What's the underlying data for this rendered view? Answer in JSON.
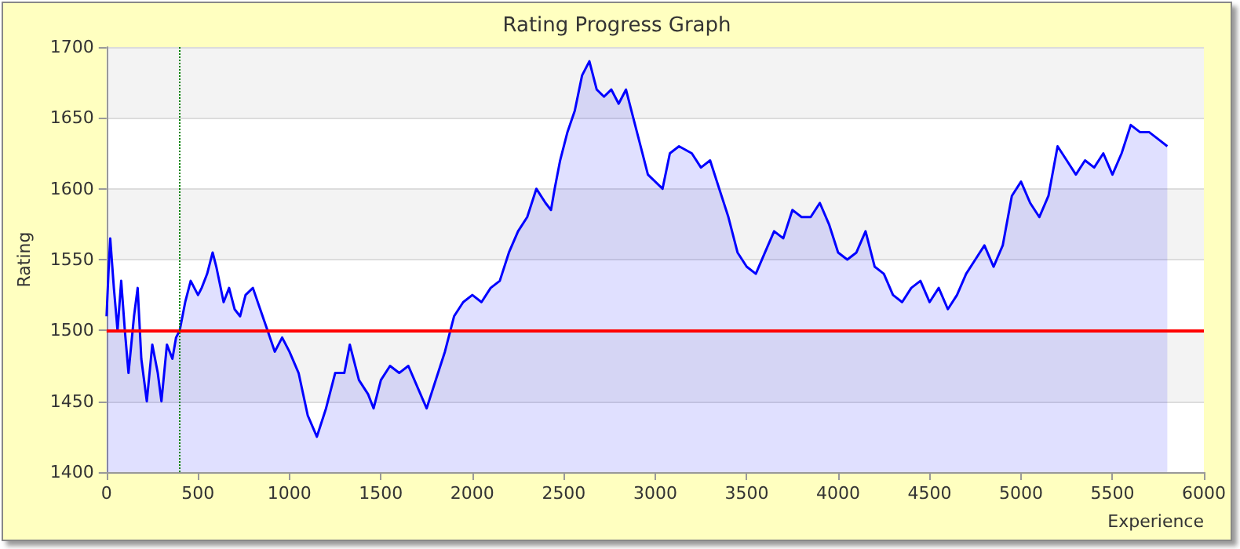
{
  "chart_data": {
    "type": "area",
    "title": "Rating Progress Graph",
    "xlabel": "Experience",
    "ylabel": "Rating",
    "x": [
      0,
      10,
      20,
      40,
      60,
      80,
      100,
      120,
      150,
      170,
      190,
      220,
      250,
      280,
      300,
      330,
      360,
      380,
      400,
      430,
      460,
      500,
      520,
      550,
      580,
      600,
      640,
      670,
      700,
      730,
      760,
      800,
      840,
      880,
      920,
      960,
      1000,
      1050,
      1100,
      1150,
      1200,
      1250,
      1300,
      1330,
      1380,
      1430,
      1460,
      1500,
      1550,
      1600,
      1650,
      1700,
      1750,
      1800,
      1850,
      1900,
      1950,
      2000,
      2050,
      2100,
      2150,
      2200,
      2250,
      2300,
      2350,
      2400,
      2430,
      2450,
      2480,
      2520,
      2560,
      2600,
      2640,
      2680,
      2720,
      2760,
      2800,
      2840,
      2880,
      2920,
      2960,
      3000,
      3040,
      3080,
      3130,
      3200,
      3250,
      3300,
      3350,
      3400,
      3450,
      3500,
      3550,
      3600,
      3650,
      3700,
      3750,
      3800,
      3850,
      3900,
      3950,
      4000,
      4050,
      4100,
      4150,
      4200,
      4250,
      4300,
      4350,
      4400,
      4450,
      4500,
      4550,
      4600,
      4650,
      4700,
      4750,
      4800,
      4850,
      4900,
      4950,
      5000,
      5050,
      5100,
      5150,
      5200,
      5250,
      5300,
      5350,
      5400,
      5450,
      5500,
      5550,
      5600,
      5650,
      5700,
      5750,
      5800
    ],
    "series": [
      {
        "color": "#0000ff",
        "values": [
          1510,
          1540,
          1565,
          1530,
          1500,
          1535,
          1500,
          1470,
          1510,
          1530,
          1480,
          1450,
          1490,
          1470,
          1450,
          1490,
          1480,
          1495,
          1500,
          1520,
          1535,
          1525,
          1530,
          1540,
          1555,
          1545,
          1520,
          1530,
          1515,
          1510,
          1525,
          1530,
          1515,
          1500,
          1485,
          1495,
          1485,
          1470,
          1440,
          1425,
          1445,
          1470,
          1470,
          1490,
          1465,
          1455,
          1445,
          1465,
          1475,
          1470,
          1475,
          1460,
          1445,
          1465,
          1485,
          1510,
          1520,
          1525,
          1520,
          1530,
          1535,
          1555,
          1570,
          1580,
          1600,
          1590,
          1585,
          1600,
          1620,
          1640,
          1655,
          1680,
          1690,
          1670,
          1665,
          1670,
          1660,
          1670,
          1650,
          1630,
          1610,
          1605,
          1600,
          1625,
          1630,
          1625,
          1615,
          1620,
          1600,
          1580,
          1555,
          1545,
          1540,
          1555,
          1570,
          1565,
          1585,
          1580,
          1580,
          1590,
          1575,
          1555,
          1550,
          1555,
          1570,
          1545,
          1540,
          1525,
          1520,
          1530,
          1535,
          1520,
          1530,
          1515,
          1525,
          1540,
          1550,
          1560,
          1545,
          1560,
          1595,
          1605,
          1590,
          1580,
          1595,
          1630,
          1620,
          1610,
          1620,
          1615,
          1625,
          1610,
          1625,
          1645,
          1640,
          1640,
          1635,
          1630
        ]
      }
    ],
    "xlim": [
      0,
      6000
    ],
    "xticks": [
      0,
      500,
      1000,
      1500,
      2000,
      2500,
      3000,
      3500,
      4000,
      4500,
      5000,
      5500,
      6000
    ],
    "ylim": [
      1400,
      1700
    ],
    "yticks": [
      1400,
      1450,
      1500,
      1550,
      1600,
      1650,
      1700
    ],
    "grid": "y",
    "marker": "none",
    "ref_lines": [
      {
        "axis": "y",
        "value": 1500,
        "color": "#ff0000",
        "line_style": "solid"
      },
      {
        "axis": "x",
        "value": 400,
        "color": "#008000",
        "line_style": "dotted"
      }
    ]
  }
}
